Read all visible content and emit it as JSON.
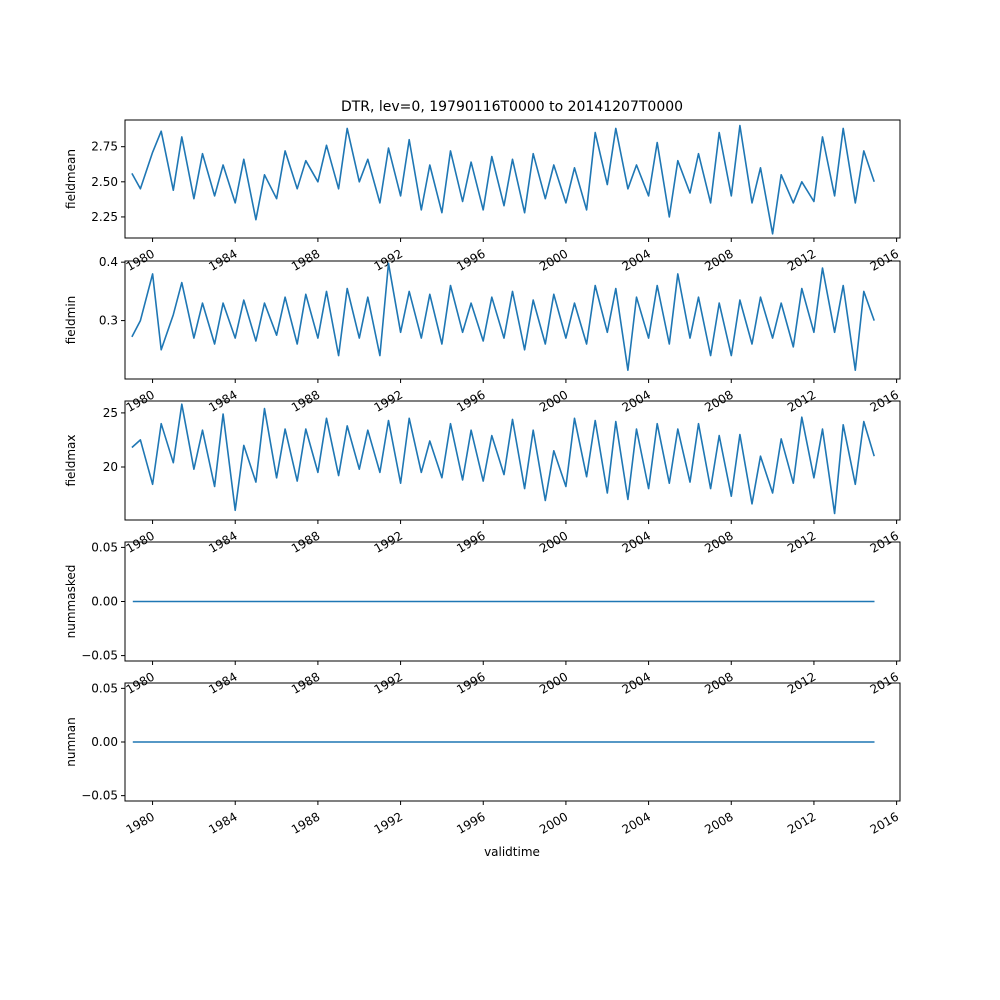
{
  "figure": {
    "title": "DTR, lev=0, 19790116T0000 to 20141207T0000",
    "xlabel": "validtime"
  },
  "colors": {
    "series": "#1f77b4",
    "axis": "#000000",
    "background": "#ffffff"
  },
  "chart_data": [
    {
      "type": "line",
      "ylabel": "fieldmean",
      "xlim": [
        "1978-09-01",
        "2016-03-01"
      ],
      "ylim": [
        2.1,
        2.94
      ],
      "yticks": [
        2.25,
        2.5,
        2.75
      ],
      "ytick_labels": [
        "2.25",
        "2.50",
        "2.75"
      ],
      "xticks": [
        "1980-01-01",
        "1984-01-01",
        "1988-01-01",
        "1992-01-01",
        "1996-01-01",
        "2000-01-01",
        "2004-01-01",
        "2008-01-01",
        "2012-01-01",
        "2016-01-01"
      ],
      "xtick_labels": [
        "1980",
        "1984",
        "1988",
        "1992",
        "1996",
        "2000",
        "2004",
        "2008",
        "2012",
        "2016"
      ],
      "x": [
        "1979-01",
        "1979-06",
        "1980-01",
        "1980-06",
        "1981-01",
        "1981-06",
        "1982-01",
        "1982-06",
        "1983-01",
        "1983-06",
        "1984-01",
        "1984-06",
        "1985-01",
        "1985-06",
        "1986-01",
        "1986-06",
        "1987-01",
        "1987-06",
        "1988-01",
        "1988-06",
        "1989-01",
        "1989-06",
        "1990-01",
        "1990-06",
        "1991-01",
        "1991-06",
        "1992-01",
        "1992-06",
        "1993-01",
        "1993-06",
        "1994-01",
        "1994-06",
        "1995-01",
        "1995-06",
        "1996-01",
        "1996-06",
        "1997-01",
        "1997-06",
        "1998-01",
        "1998-06",
        "1999-01",
        "1999-06",
        "2000-01",
        "2000-06",
        "2001-01",
        "2001-06",
        "2002-01",
        "2002-06",
        "2003-01",
        "2003-06",
        "2004-01",
        "2004-06",
        "2005-01",
        "2005-06",
        "2006-01",
        "2006-06",
        "2007-01",
        "2007-06",
        "2008-01",
        "2008-06",
        "2009-01",
        "2009-06",
        "2010-01",
        "2010-06",
        "2011-01",
        "2011-06",
        "2012-01",
        "2012-06",
        "2013-01",
        "2013-06",
        "2014-01",
        "2014-06",
        "2014-12"
      ],
      "values": [
        2.56,
        2.45,
        2.71,
        2.86,
        2.44,
        2.82,
        2.38,
        2.7,
        2.4,
        2.62,
        2.35,
        2.66,
        2.23,
        2.55,
        2.38,
        2.72,
        2.45,
        2.65,
        2.5,
        2.76,
        2.45,
        2.88,
        2.5,
        2.66,
        2.35,
        2.74,
        2.4,
        2.8,
        2.3,
        2.62,
        2.28,
        2.72,
        2.36,
        2.64,
        2.3,
        2.68,
        2.33,
        2.66,
        2.28,
        2.7,
        2.38,
        2.62,
        2.35,
        2.6,
        2.3,
        2.85,
        2.48,
        2.88,
        2.45,
        2.62,
        2.4,
        2.78,
        2.25,
        2.65,
        2.42,
        2.7,
        2.35,
        2.85,
        2.4,
        2.9,
        2.35,
        2.6,
        2.13,
        2.55,
        2.35,
        2.5,
        2.36,
        2.82,
        2.4,
        2.88,
        2.35,
        2.72,
        2.5
      ]
    },
    {
      "type": "line",
      "ylabel": "fieldmin",
      "xlim": [
        "1978-09-01",
        "2016-03-01"
      ],
      "ylim": [
        0.2,
        0.402
      ],
      "yticks": [
        0.3,
        0.4
      ],
      "ytick_labels": [
        "0.3",
        "0.4"
      ],
      "xticks": [
        "1980-01-01",
        "1984-01-01",
        "1988-01-01",
        "1992-01-01",
        "1996-01-01",
        "2000-01-01",
        "2004-01-01",
        "2008-01-01",
        "2012-01-01",
        "2016-01-01"
      ],
      "xtick_labels": [
        "1980",
        "1984",
        "1988",
        "1992",
        "1996",
        "2000",
        "2004",
        "2008",
        "2012",
        "2016"
      ],
      "x": [
        "1979-01",
        "1979-06",
        "1980-01",
        "1980-06",
        "1981-01",
        "1981-06",
        "1982-01",
        "1982-06",
        "1983-01",
        "1983-06",
        "1984-01",
        "1984-06",
        "1985-01",
        "1985-06",
        "1986-01",
        "1986-06",
        "1987-01",
        "1987-06",
        "1988-01",
        "1988-06",
        "1989-01",
        "1989-06",
        "1990-01",
        "1990-06",
        "1991-01",
        "1991-06",
        "1992-01",
        "1992-06",
        "1993-01",
        "1993-06",
        "1994-01",
        "1994-06",
        "1995-01",
        "1995-06",
        "1996-01",
        "1996-06",
        "1997-01",
        "1997-06",
        "1998-01",
        "1998-06",
        "1999-01",
        "1999-06",
        "2000-01",
        "2000-06",
        "2001-01",
        "2001-06",
        "2002-01",
        "2002-06",
        "2003-01",
        "2003-06",
        "2004-01",
        "2004-06",
        "2005-01",
        "2005-06",
        "2006-01",
        "2006-06",
        "2007-01",
        "2007-06",
        "2008-01",
        "2008-06",
        "2009-01",
        "2009-06",
        "2010-01",
        "2010-06",
        "2011-01",
        "2011-06",
        "2012-01",
        "2012-06",
        "2013-01",
        "2013-06",
        "2014-01",
        "2014-06",
        "2014-12"
      ],
      "values": [
        0.272,
        0.3,
        0.38,
        0.25,
        0.31,
        0.365,
        0.27,
        0.33,
        0.26,
        0.33,
        0.27,
        0.335,
        0.265,
        0.33,
        0.275,
        0.34,
        0.26,
        0.345,
        0.27,
        0.35,
        0.24,
        0.355,
        0.27,
        0.34,
        0.24,
        0.398,
        0.28,
        0.35,
        0.27,
        0.345,
        0.26,
        0.36,
        0.28,
        0.33,
        0.265,
        0.34,
        0.27,
        0.35,
        0.25,
        0.335,
        0.26,
        0.345,
        0.27,
        0.33,
        0.26,
        0.36,
        0.28,
        0.355,
        0.215,
        0.34,
        0.27,
        0.36,
        0.26,
        0.38,
        0.27,
        0.34,
        0.24,
        0.33,
        0.24,
        0.335,
        0.26,
        0.34,
        0.27,
        0.33,
        0.255,
        0.355,
        0.28,
        0.39,
        0.28,
        0.36,
        0.215,
        0.35,
        0.3
      ]
    },
    {
      "type": "line",
      "ylabel": "fieldmax",
      "xlim": [
        "1978-09-01",
        "2016-03-01"
      ],
      "ylim": [
        15.1,
        26.1
      ],
      "yticks": [
        20,
        25
      ],
      "ytick_labels": [
        "20",
        "25"
      ],
      "xticks": [
        "1980-01-01",
        "1984-01-01",
        "1988-01-01",
        "1992-01-01",
        "1996-01-01",
        "2000-01-01",
        "2004-01-01",
        "2008-01-01",
        "2012-01-01",
        "2016-01-01"
      ],
      "xtick_labels": [
        "1980",
        "1984",
        "1988",
        "1992",
        "1996",
        "2000",
        "2004",
        "2008",
        "2012",
        "2016"
      ],
      "x": [
        "1979-01",
        "1979-06",
        "1980-01",
        "1980-06",
        "1981-01",
        "1981-06",
        "1982-01",
        "1982-06",
        "1983-01",
        "1983-06",
        "1984-01",
        "1984-06",
        "1985-01",
        "1985-06",
        "1986-01",
        "1986-06",
        "1987-01",
        "1987-06",
        "1988-01",
        "1988-06",
        "1989-01",
        "1989-06",
        "1990-01",
        "1990-06",
        "1991-01",
        "1991-06",
        "1992-01",
        "1992-06",
        "1993-01",
        "1993-06",
        "1994-01",
        "1994-06",
        "1995-01",
        "1995-06",
        "1996-01",
        "1996-06",
        "1997-01",
        "1997-06",
        "1998-01",
        "1998-06",
        "1999-01",
        "1999-06",
        "2000-01",
        "2000-06",
        "2001-01",
        "2001-06",
        "2002-01",
        "2002-06",
        "2003-01",
        "2003-06",
        "2004-01",
        "2004-06",
        "2005-01",
        "2005-06",
        "2006-01",
        "2006-06",
        "2007-01",
        "2007-06",
        "2008-01",
        "2008-06",
        "2009-01",
        "2009-06",
        "2010-01",
        "2010-06",
        "2011-01",
        "2011-06",
        "2012-01",
        "2012-06",
        "2013-01",
        "2013-06",
        "2014-01",
        "2014-06",
        "2014-12"
      ],
      "values": [
        21.8,
        22.5,
        18.4,
        24.0,
        20.4,
        25.8,
        19.8,
        23.4,
        18.2,
        24.9,
        16.0,
        22.0,
        18.6,
        25.4,
        19.0,
        23.5,
        18.7,
        23.5,
        19.5,
        24.5,
        19.2,
        23.8,
        19.8,
        23.4,
        19.5,
        24.3,
        18.5,
        24.5,
        19.5,
        22.4,
        19.0,
        24.0,
        18.8,
        23.4,
        18.7,
        22.9,
        19.3,
        24.4,
        18.0,
        23.4,
        16.9,
        21.5,
        18.2,
        24.5,
        19.1,
        24.3,
        17.6,
        24.2,
        17.0,
        23.5,
        18.0,
        24.0,
        18.5,
        23.5,
        18.6,
        24.0,
        18.0,
        22.9,
        17.3,
        23.0,
        16.6,
        21.0,
        17.6,
        22.6,
        18.5,
        24.6,
        19.0,
        23.5,
        15.7,
        23.9,
        18.4,
        24.2,
        21.0
      ]
    },
    {
      "type": "line",
      "ylabel": "nummasked",
      "xlim": [
        "1978-09-01",
        "2016-03-01"
      ],
      "ylim": [
        -0.055,
        0.055
      ],
      "yticks": [
        -0.05,
        0.0,
        0.05
      ],
      "ytick_labels": [
        "−0.05",
        "0.00",
        "0.05"
      ],
      "xticks": [
        "1980-01-01",
        "1984-01-01",
        "1988-01-01",
        "1992-01-01",
        "1996-01-01",
        "2000-01-01",
        "2004-01-01",
        "2008-01-01",
        "2012-01-01",
        "2016-01-01"
      ],
      "xtick_labels": [
        "1980",
        "1984",
        "1988",
        "1992",
        "1996",
        "2000",
        "2004",
        "2008",
        "2012",
        "2016"
      ],
      "x": [
        "1979-01-16",
        "2014-12-07"
      ],
      "values": [
        0,
        0
      ]
    },
    {
      "type": "line",
      "ylabel": "numnan",
      "xlim": [
        "1978-09-01",
        "2016-03-01"
      ],
      "ylim": [
        -0.055,
        0.055
      ],
      "yticks": [
        -0.05,
        0.0,
        0.05
      ],
      "ytick_labels": [
        "−0.05",
        "0.00",
        "0.05"
      ],
      "xticks": [
        "1980-01-01",
        "1984-01-01",
        "1988-01-01",
        "1992-01-01",
        "1996-01-01",
        "2000-01-01",
        "2004-01-01",
        "2008-01-01",
        "2012-01-01",
        "2016-01-01"
      ],
      "xtick_labels": [
        "1980",
        "1984",
        "1988",
        "1992",
        "1996",
        "2000",
        "2004",
        "2008",
        "2012",
        "2016"
      ],
      "x": [
        "1979-01-16",
        "2014-12-07"
      ],
      "values": [
        0,
        0
      ]
    }
  ]
}
